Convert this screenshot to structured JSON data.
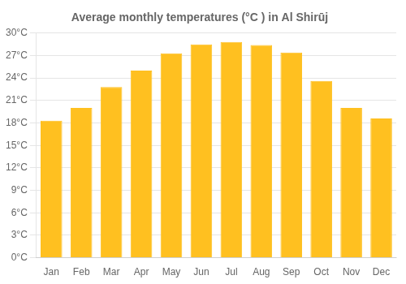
{
  "chart_data": {
    "type": "bar",
    "title": "Average monthly temperatures (°C ) in Al Shirūj",
    "categories": [
      "Jan",
      "Feb",
      "Mar",
      "Apr",
      "May",
      "Jun",
      "Jul",
      "Aug",
      "Sep",
      "Oct",
      "Nov",
      "Dec"
    ],
    "values": [
      18.3,
      20.0,
      22.8,
      25.0,
      27.3,
      28.5,
      28.8,
      28.4,
      27.4,
      23.6,
      20.0,
      18.6
    ],
    "color": "#FFC020",
    "ylim": [
      0,
      30
    ],
    "yticks": [
      {
        "value": 0,
        "label": "0°C"
      },
      {
        "value": 3,
        "label": "3°C"
      },
      {
        "value": 6,
        "label": "6°C"
      },
      {
        "value": 9,
        "label": "9°C"
      },
      {
        "value": 12,
        "label": "12°C"
      },
      {
        "value": 15,
        "label": "15°C"
      },
      {
        "value": 18,
        "label": "18°C"
      },
      {
        "value": 21,
        "label": "21°C"
      },
      {
        "value": 24,
        "label": "24°C"
      },
      {
        "value": 27,
        "label": "27°C"
      },
      {
        "value": 30,
        "label": "30°C"
      }
    ],
    "grid": true
  }
}
